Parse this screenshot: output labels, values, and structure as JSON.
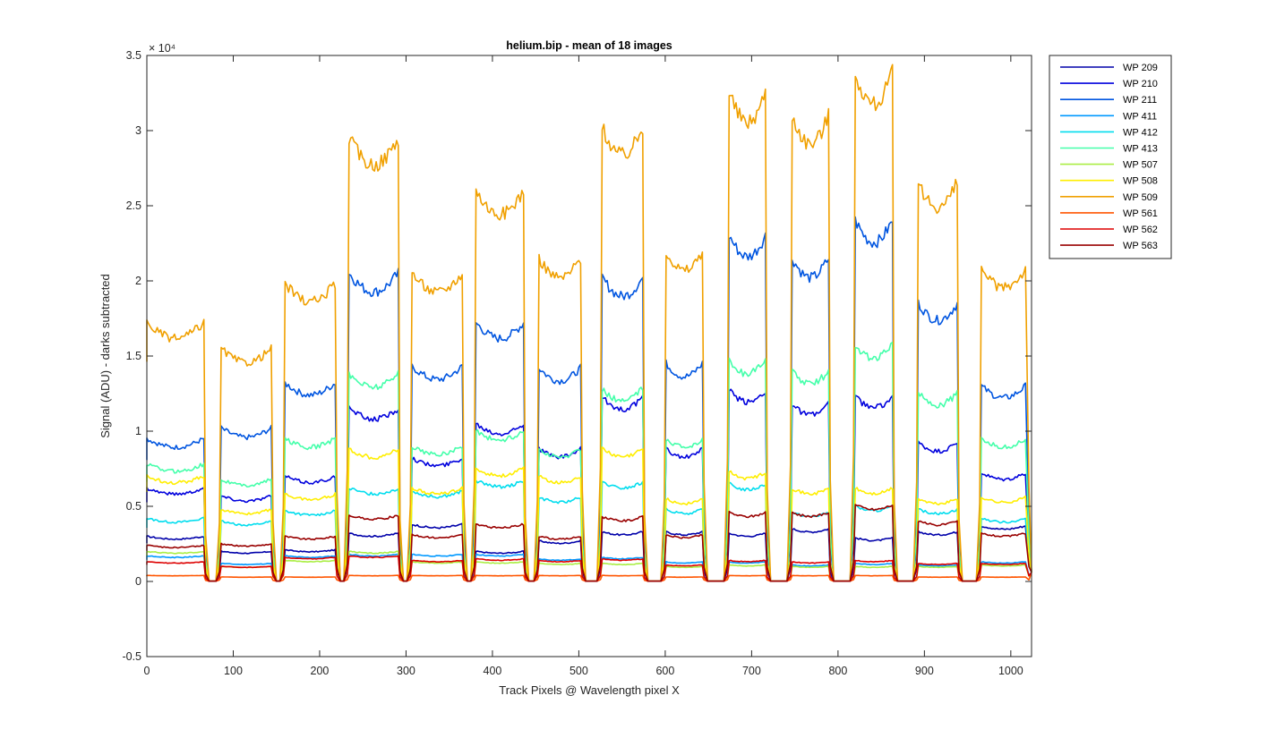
{
  "chart_data": {
    "type": "line",
    "title": "helium.bip - mean of 18 images",
    "xlabel": "Track Pixels @ Wavelength pixel X",
    "ylabel": "Signal (ADU) - darks subtracted",
    "xlim": [
      0,
      1024
    ],
    "ylim": [
      -0.5,
      3.5
    ],
    "y_exponent_label": "× 10⁴",
    "y_exponent": "4",
    "x_ticks": [
      0,
      100,
      200,
      300,
      400,
      500,
      600,
      700,
      800,
      900,
      1000
    ],
    "y_ticks": [
      -0.5,
      0,
      0.5,
      1,
      1.5,
      2,
      2.5,
      3,
      3.5
    ],
    "y_tick_labels": [
      "-0.5",
      "0",
      "0.5",
      "1",
      "1.5",
      "2",
      "2.5",
      "3",
      "3.5"
    ],
    "grid": false,
    "legend_position": "outside-right-top",
    "segments": [
      {
        "start": 0,
        "end": 66
      },
      {
        "start": 86,
        "end": 144
      },
      {
        "start": 160,
        "end": 218
      },
      {
        "start": 234,
        "end": 291
      },
      {
        "start": 307,
        "end": 365
      },
      {
        "start": 381,
        "end": 436
      },
      {
        "start": 454,
        "end": 502
      },
      {
        "start": 527,
        "end": 574
      },
      {
        "start": 601,
        "end": 643
      },
      {
        "start": 674,
        "end": 716
      },
      {
        "start": 747,
        "end": 789
      },
      {
        "start": 820,
        "end": 863
      },
      {
        "start": 893,
        "end": 938
      },
      {
        "start": 966,
        "end": 1017
      }
    ],
    "series": [
      {
        "name": "WP 209",
        "color": "#0000aa",
        "values": [
          0.3,
          0.2,
          0.21,
          0.32,
          0.38,
          0.2,
          0.27,
          0.33,
          0.33,
          0.32,
          0.35,
          0.29,
          0.33,
          0.37
        ]
      },
      {
        "name": "WP 210",
        "color": "#0000dd",
        "values": [
          0.62,
          0.57,
          0.7,
          1.15,
          0.82,
          1.05,
          0.88,
          1.22,
          0.88,
          1.27,
          1.18,
          1.23,
          0.92,
          0.72
        ]
      },
      {
        "name": "WP 211",
        "color": "#0055e0",
        "values": [
          0.95,
          1.02,
          1.32,
          2.05,
          1.43,
          1.72,
          1.42,
          2.02,
          1.45,
          2.3,
          2.15,
          2.4,
          1.85,
          1.3
        ]
      },
      {
        "name": "WP 411",
        "color": "#0099ff",
        "values": [
          0.17,
          0.12,
          0.17,
          0.18,
          0.18,
          0.18,
          0.15,
          0.16,
          0.13,
          0.13,
          0.11,
          0.12,
          0.11,
          0.13
        ]
      },
      {
        "name": "WP 412",
        "color": "#00ddee",
        "values": [
          0.42,
          0.4,
          0.47,
          0.62,
          0.6,
          0.67,
          0.56,
          0.66,
          0.48,
          0.65,
          0.46,
          0.5,
          0.48,
          0.42
        ]
      },
      {
        "name": "WP 413",
        "color": "#44ffaa",
        "values": [
          0.78,
          0.68,
          0.95,
          1.38,
          0.9,
          1.0,
          0.88,
          1.28,
          0.95,
          1.47,
          1.4,
          1.58,
          1.25,
          0.95
        ]
      },
      {
        "name": "WP 507",
        "color": "#aaee44",
        "values": [
          0.2,
          0.1,
          0.14,
          0.2,
          0.13,
          0.13,
          0.12,
          0.12,
          0.1,
          0.11,
          0.1,
          0.1,
          0.1,
          0.11
        ]
      },
      {
        "name": "WP 508",
        "color": "#ffee00",
        "values": [
          0.7,
          0.48,
          0.58,
          0.88,
          0.62,
          0.75,
          0.7,
          0.88,
          0.55,
          0.73,
          0.62,
          0.62,
          0.55,
          0.56
        ]
      },
      {
        "name": "WP 509",
        "color": "#f0a000",
        "values": [
          1.72,
          1.55,
          1.98,
          2.95,
          2.05,
          2.6,
          2.15,
          3.02,
          2.2,
          3.25,
          3.1,
          3.38,
          2.65,
          2.08
        ]
      },
      {
        "name": "WP 561",
        "color": "#ff5500",
        "values": [
          0.04,
          0.03,
          0.03,
          0.04,
          0.04,
          0.04,
          0.04,
          0.04,
          0.03,
          0.04,
          0.04,
          0.04,
          0.03,
          0.03
        ]
      },
      {
        "name": "WP 562",
        "color": "#dd0000",
        "values": [
          0.13,
          0.1,
          0.16,
          0.17,
          0.14,
          0.15,
          0.14,
          0.15,
          0.11,
          0.14,
          0.13,
          0.14,
          0.12,
          0.12
        ]
      },
      {
        "name": "WP 563",
        "color": "#990000",
        "values": [
          0.24,
          0.25,
          0.3,
          0.44,
          0.31,
          0.38,
          0.3,
          0.43,
          0.31,
          0.46,
          0.46,
          0.51,
          0.4,
          0.32
        ]
      }
    ]
  }
}
